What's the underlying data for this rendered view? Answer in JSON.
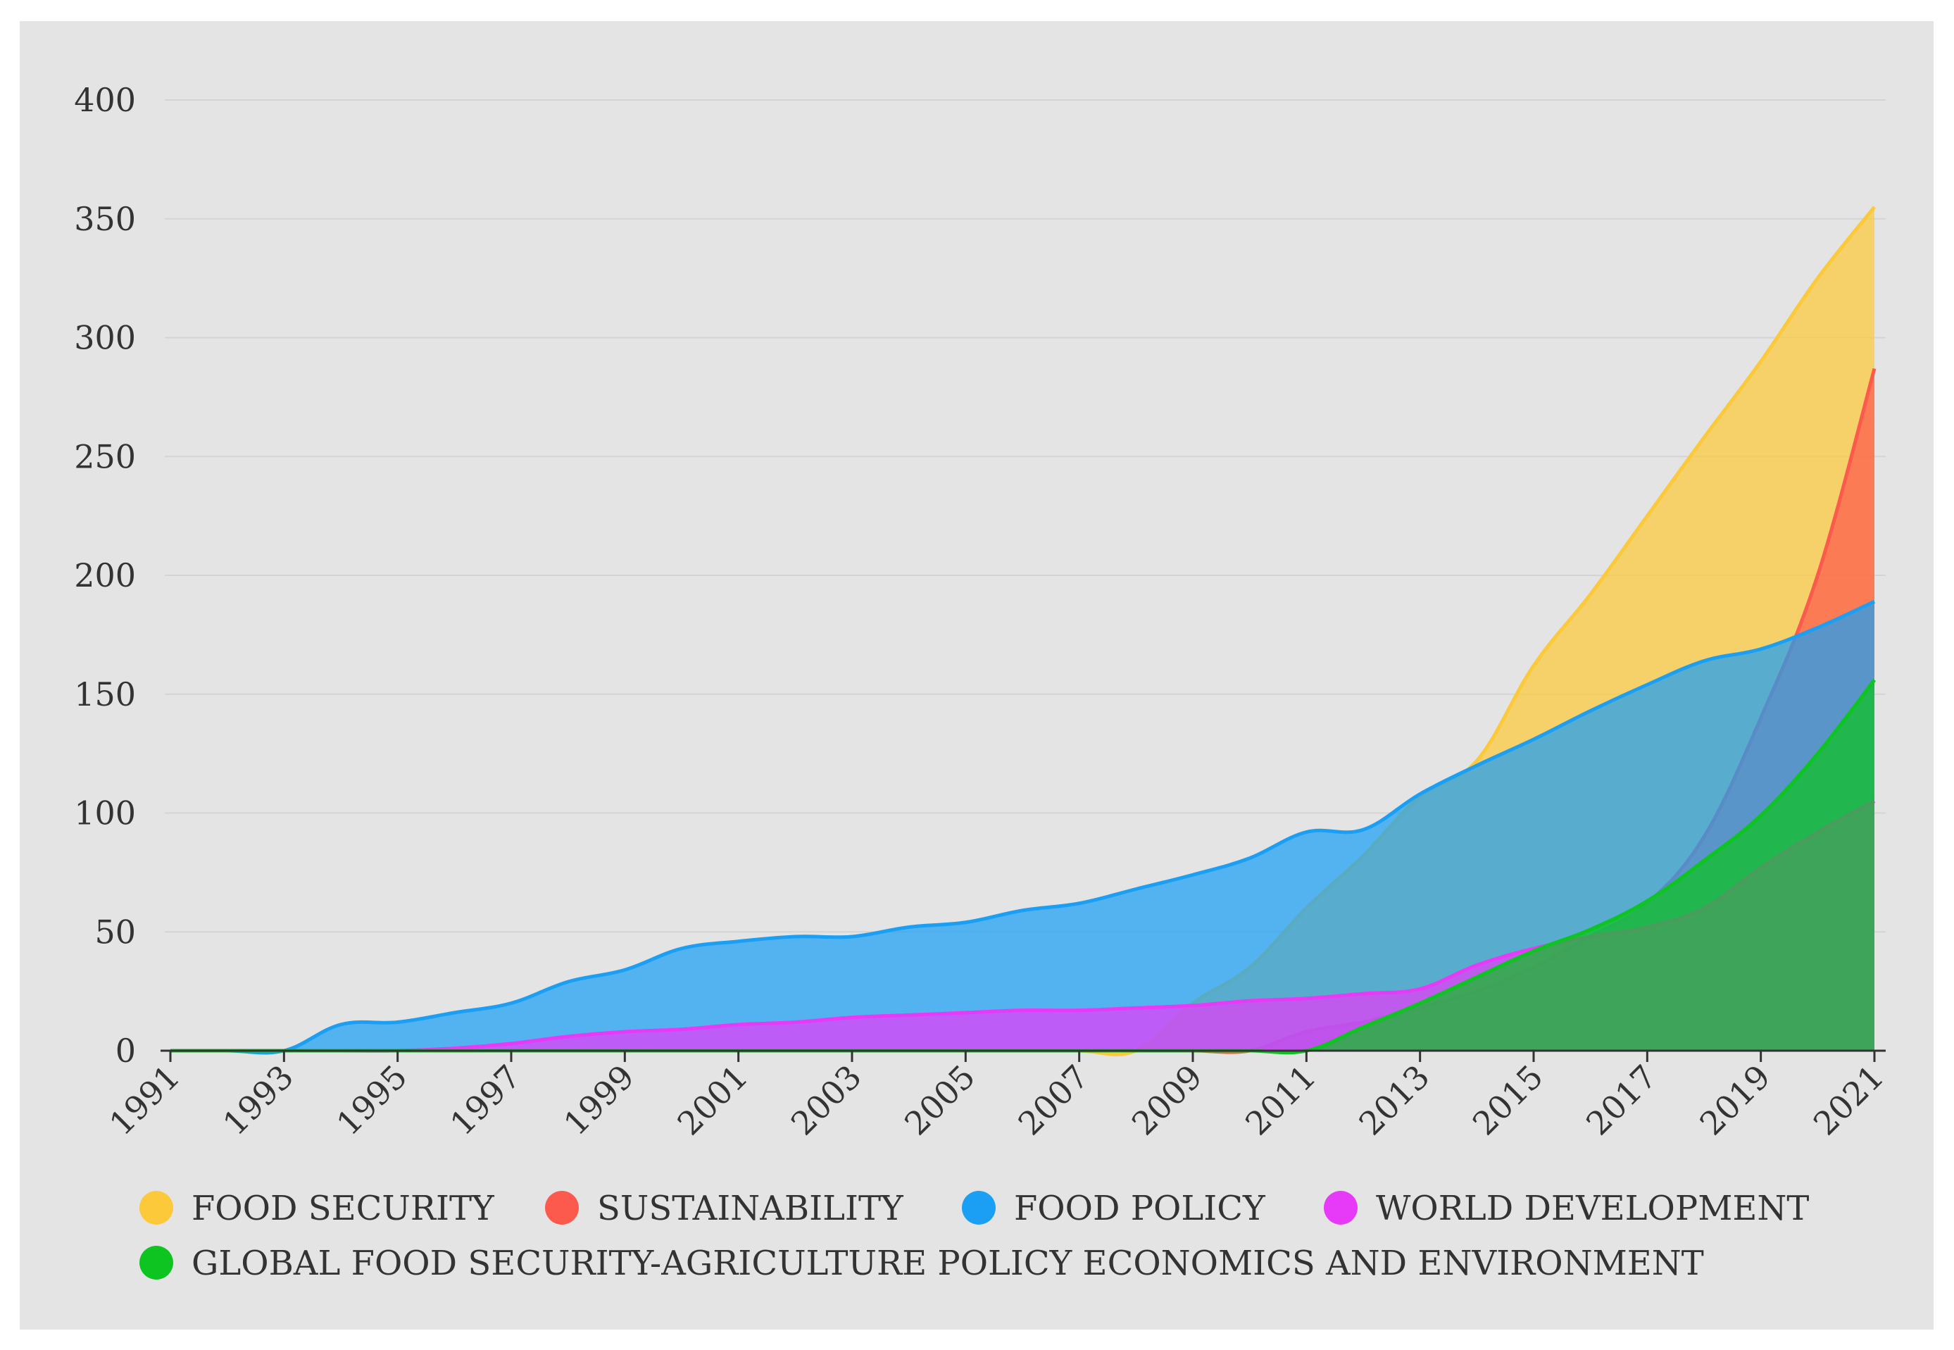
{
  "chart_data": {
    "type": "area",
    "x": [
      1991,
      1992,
      1993,
      1994,
      1995,
      1996,
      1997,
      1998,
      1999,
      2000,
      2001,
      2002,
      2003,
      2004,
      2005,
      2006,
      2007,
      2008,
      2009,
      2010,
      2011,
      2012,
      2013,
      2014,
      2015,
      2016,
      2017,
      2018,
      2019,
      2020,
      2021
    ],
    "x_tick_labels": [
      "1991",
      "1993",
      "1995",
      "1997",
      "1999",
      "2001",
      "2003",
      "2005",
      "2007",
      "2009",
      "2011",
      "2013",
      "2015",
      "2017",
      "2019",
      "2021"
    ],
    "y_tick_labels": [
      "0",
      "50",
      "100",
      "150",
      "200",
      "250",
      "300",
      "350",
      "400"
    ],
    "ylim": [
      0,
      400
    ],
    "grid": true,
    "legend_position": "bottom",
    "series": [
      {
        "name": "FOOD SECURITY",
        "color": "#fcc93a",
        "values": [
          0,
          0,
          0,
          0,
          0,
          0,
          0,
          0,
          0,
          0,
          0,
          0,
          0,
          0,
          0,
          0,
          0,
          0,
          20,
          35,
          60,
          82,
          107,
          122,
          162,
          192,
          225,
          258,
          290,
          325,
          355
        ]
      },
      {
        "name": "SUSTAINABILITY",
        "color": "#fb5a4c",
        "values": [
          0,
          0,
          0,
          0,
          0,
          0,
          0,
          0,
          0,
          0,
          0,
          0,
          0,
          0,
          0,
          0,
          0,
          0,
          0,
          0,
          8,
          12,
          18,
          25,
          35,
          48,
          62,
          90,
          140,
          200,
          287
        ]
      },
      {
        "name": "FOOD POLICY",
        "color": "#1a9ff5",
        "values": [
          0,
          0,
          0,
          11,
          12,
          16,
          20,
          29,
          34,
          43,
          46,
          48,
          48,
          52,
          54,
          59,
          62,
          68,
          74,
          81,
          92,
          93,
          108,
          120,
          131,
          143,
          154,
          164,
          169,
          178,
          189
        ]
      },
      {
        "name": "WORLD DEVELOPMENT",
        "color": "#e63af8",
        "values": [
          0,
          0,
          0,
          0,
          0,
          1,
          3,
          6,
          8,
          9,
          11,
          12,
          14,
          15,
          16,
          17,
          17,
          18,
          19,
          21,
          22,
          24,
          26,
          36,
          43,
          48,
          52,
          60,
          77,
          92,
          105
        ]
      },
      {
        "name": "GLOBAL FOOD SECURITY-AGRICULTURE POLICY ECONOMICS AND ENVIRONMENT",
        "color": "#0dc420",
        "values": [
          0,
          0,
          0,
          0,
          0,
          0,
          0,
          0,
          0,
          0,
          0,
          0,
          0,
          0,
          0,
          0,
          0,
          0,
          0,
          0,
          0,
          10,
          20,
          31,
          42,
          51,
          63,
          80,
          99,
          125,
          156
        ]
      }
    ]
  }
}
